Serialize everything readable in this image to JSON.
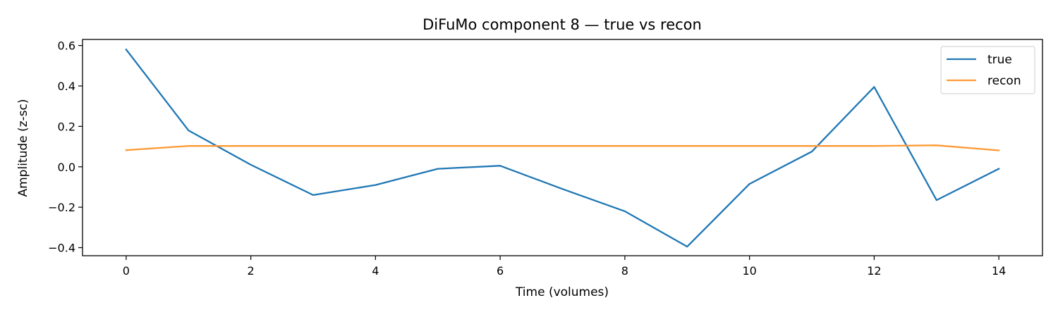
{
  "chart_data": {
    "type": "line",
    "title": "DiFuMo component 8 — true vs recon",
    "xlabel": "Time (volumes)",
    "ylabel": "Amplitude (z-sc)",
    "xlim": [
      -0.7,
      14.7
    ],
    "ylim": [
      -0.44,
      0.63
    ],
    "xticks": [
      0,
      2,
      4,
      6,
      8,
      10,
      12,
      14
    ],
    "xtick_labels": [
      "0",
      "2",
      "4",
      "6",
      "8",
      "10",
      "12",
      "14"
    ],
    "yticks": [
      0.6,
      0.4,
      0.2,
      0.0,
      -0.2,
      -0.4
    ],
    "ytick_labels": [
      "0.6",
      "0.4",
      "0.2",
      "0.0",
      "−0.2",
      "−0.4"
    ],
    "grid": false,
    "legend_position": "top-right",
    "x": [
      0,
      1,
      2,
      3,
      4,
      5,
      6,
      7,
      8,
      9,
      10,
      11,
      12,
      13,
      14
    ],
    "series": [
      {
        "name": "true",
        "color": "#1f77b4",
        "values": [
          0.58,
          0.18,
          0.01,
          -0.14,
          -0.09,
          -0.01,
          0.005,
          -0.11,
          -0.22,
          -0.395,
          -0.085,
          0.075,
          0.395,
          -0.165,
          -0.01
        ]
      },
      {
        "name": "recon",
        "color": "#ff9933",
        "values": [
          0.082,
          0.103,
          0.103,
          0.103,
          0.103,
          0.103,
          0.103,
          0.103,
          0.103,
          0.103,
          0.103,
          0.103,
          0.103,
          0.106,
          0.081
        ]
      }
    ]
  }
}
